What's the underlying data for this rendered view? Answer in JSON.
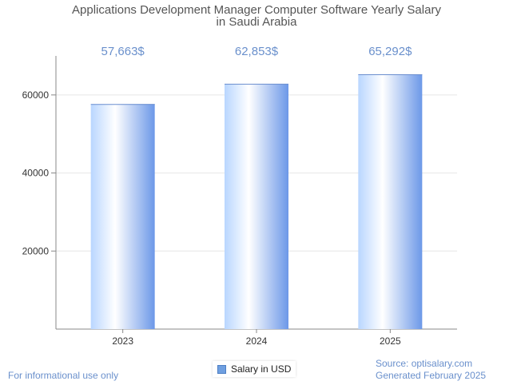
{
  "chart_data": {
    "type": "bar",
    "title_line1": "Applications Development Manager Computer Software Yearly Salary",
    "title_line2": "in Saudi Arabia",
    "categories": [
      "2023",
      "2024",
      "2025"
    ],
    "series": [
      {
        "name": "Salary in USD",
        "values": [
          57663,
          62853,
          65292
        ]
      }
    ],
    "data_labels": [
      "57,663$",
      "62,853$",
      "65,292$"
    ],
    "y_ticks": [
      20000,
      40000,
      60000
    ],
    "ylim": [
      0,
      70000
    ],
    "grid": true,
    "legend_position": "bottom-center",
    "colors": {
      "bar_light": "#ffffff",
      "bar_mid": "#b9d6ff",
      "bar_dark": "#6c98e8",
      "data_label": "#6a90cc",
      "grid": "#e6e6e6",
      "axis": "#888888"
    }
  },
  "footer": {
    "left": "For informational use only",
    "source": "Source: optisalary.com",
    "generated": "Generated February 2025"
  }
}
